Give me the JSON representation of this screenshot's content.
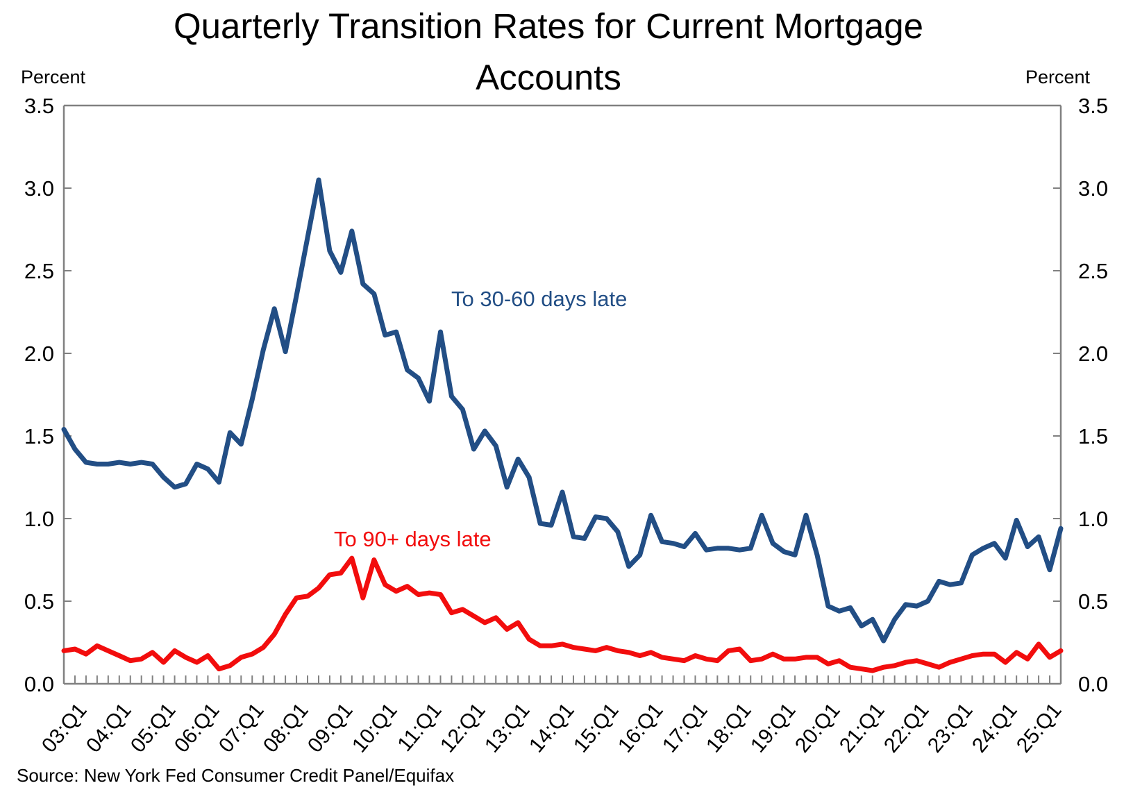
{
  "title": {
    "line1": "Quarterly Transition Rates for Current Mortgage",
    "line2": "Accounts"
  },
  "y_axis": {
    "unit_label_left": "Percent",
    "unit_label_right": "Percent",
    "tick_labels": [
      "3.5",
      "3.0",
      "2.5",
      "2.0",
      "1.5",
      "1.0",
      "0.5",
      "0.0"
    ]
  },
  "source": "Source: New York Fed Consumer Credit Panel/Equifax",
  "colors": {
    "series_30_60": "#224E85",
    "series_90_plus": "#F20D0D",
    "axis": "#808080",
    "text": "#000000"
  },
  "annotations": [
    {
      "text": "To 30-60 days late",
      "color": "#224E85"
    },
    {
      "text": "To 90+ days late",
      "color": "#F20D0D"
    }
  ],
  "chart_data": {
    "type": "line",
    "title": "Quarterly Transition Rates for Current Mortgage Accounts",
    "ylabel": "Percent",
    "ylim": [
      0.0,
      3.5
    ],
    "y_tick_step": 0.5,
    "grid": false,
    "legend_position": "inline-annotations",
    "x_start": "2003:Q1",
    "x_end": "2025:Q3",
    "x_frequency": "quarterly",
    "x_tick_labels": [
      "03:Q1",
      "04:Q1",
      "05:Q1",
      "06:Q1",
      "07:Q1",
      "08:Q1",
      "09:Q1",
      "10:Q1",
      "11:Q1",
      "12:Q1",
      "13:Q1",
      "14:Q1",
      "15:Q1",
      "16:Q1",
      "17:Q1",
      "18:Q1",
      "19:Q1",
      "20:Q1",
      "21:Q1",
      "22:Q1",
      "23:Q1",
      "24:Q1",
      "25:Q1"
    ],
    "series": [
      {
        "name": "To 30-60 days late",
        "color": "#224E85",
        "values": [
          1.54,
          1.42,
          1.34,
          1.33,
          1.33,
          1.34,
          1.33,
          1.34,
          1.33,
          1.25,
          1.19,
          1.21,
          1.33,
          1.3,
          1.22,
          1.52,
          1.45,
          1.72,
          2.02,
          2.27,
          2.01,
          2.35,
          2.7,
          3.05,
          2.62,
          2.49,
          2.74,
          2.42,
          2.36,
          2.11,
          2.13,
          1.9,
          1.85,
          1.71,
          2.13,
          1.74,
          1.66,
          1.42,
          1.53,
          1.44,
          1.19,
          1.36,
          1.25,
          0.97,
          0.96,
          1.16,
          0.89,
          0.88,
          1.01,
          1.0,
          0.92,
          0.71,
          0.78,
          1.02,
          0.86,
          0.85,
          0.83,
          0.91,
          0.81,
          0.82,
          0.82,
          0.81,
          0.82,
          1.02,
          0.85,
          0.8,
          0.78,
          1.02,
          0.78,
          0.47,
          0.44,
          0.46,
          0.35,
          0.39,
          0.26,
          0.39,
          0.48,
          0.47,
          0.5,
          0.62,
          0.6,
          0.61,
          0.78,
          0.82,
          0.85,
          0.76,
          0.99,
          0.83,
          0.89,
          0.69,
          0.94
        ]
      },
      {
        "name": "To 90+ days late",
        "color": "#F20D0D",
        "values": [
          0.2,
          0.21,
          0.18,
          0.23,
          0.2,
          0.17,
          0.14,
          0.15,
          0.19,
          0.13,
          0.2,
          0.16,
          0.13,
          0.17,
          0.09,
          0.11,
          0.16,
          0.18,
          0.22,
          0.3,
          0.42,
          0.52,
          0.53,
          0.58,
          0.66,
          0.67,
          0.76,
          0.52,
          0.75,
          0.6,
          0.56,
          0.59,
          0.54,
          0.55,
          0.54,
          0.43,
          0.45,
          0.41,
          0.37,
          0.4,
          0.33,
          0.37,
          0.27,
          0.23,
          0.23,
          0.24,
          0.22,
          0.21,
          0.2,
          0.22,
          0.2,
          0.19,
          0.17,
          0.19,
          0.16,
          0.15,
          0.14,
          0.17,
          0.15,
          0.14,
          0.2,
          0.21,
          0.14,
          0.15,
          0.18,
          0.15,
          0.15,
          0.16,
          0.16,
          0.12,
          0.14,
          0.1,
          0.09,
          0.08,
          0.1,
          0.11,
          0.13,
          0.14,
          0.12,
          0.1,
          0.13,
          0.15,
          0.17,
          0.18,
          0.18,
          0.13,
          0.19,
          0.15,
          0.24,
          0.16,
          0.2
        ]
      }
    ]
  }
}
